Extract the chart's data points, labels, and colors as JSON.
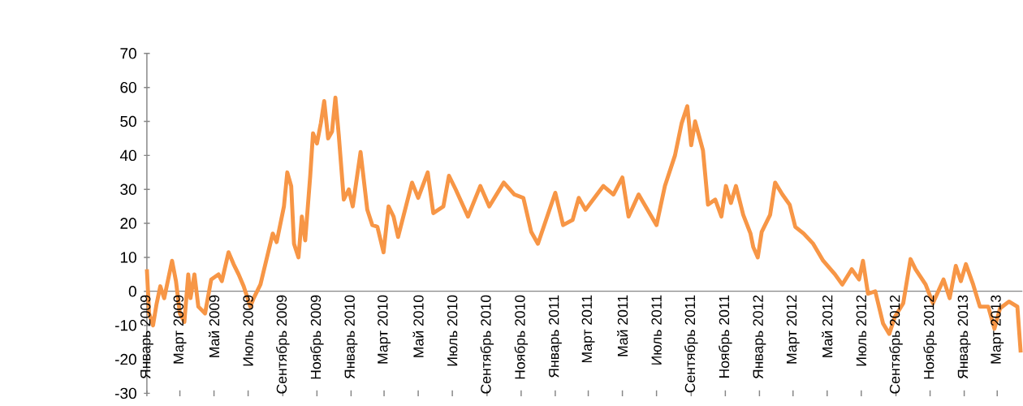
{
  "chart_data": {
    "type": "line",
    "color": "#f79646",
    "x": [
      "2009-01-01",
      "2009-01-05",
      "2009-01-12",
      "2009-01-18",
      "2009-01-25",
      "2009-02-01",
      "2009-02-08",
      "2009-02-15",
      "2009-02-22",
      "2009-03-01",
      "2009-03-09",
      "2009-03-16",
      "2009-03-20",
      "2009-03-27",
      "2009-04-03",
      "2009-04-15",
      "2009-04-26",
      "2009-05-09",
      "2009-05-15",
      "2009-05-27",
      "2009-06-05",
      "2009-06-14",
      "2009-06-23",
      "2009-07-05",
      "2009-07-11",
      "2009-07-23",
      "2009-08-03",
      "2009-08-14",
      "2009-08-21",
      "2009-09-03",
      "2009-09-09",
      "2009-09-16",
      "2009-09-21",
      "2009-09-29",
      "2009-10-05",
      "2009-10-11",
      "2009-10-20",
      "2009-10-25",
      "2009-11-01",
      "2009-11-08",
      "2009-11-14",
      "2009-11-21",
      "2009-11-28",
      "2009-12-04",
      "2009-12-10",
      "2009-12-15",
      "2009-12-19",
      "2009-12-28",
      "2010-01-04",
      "2010-01-18",
      "2010-01-30",
      "2010-02-08",
      "2010-02-17",
      "2010-02-28",
      "2010-03-09",
      "2010-03-18",
      "2010-03-26",
      "2010-04-20",
      "2010-05-01",
      "2010-05-18",
      "2010-05-28",
      "2010-06-15",
      "2010-06-25",
      "2010-07-07",
      "2010-07-29",
      "2010-08-20",
      "2010-09-05",
      "2010-10-01",
      "2010-10-20",
      "2010-11-05",
      "2010-11-19",
      "2010-12-01",
      "2011-01-01",
      "2011-01-15",
      "2011-02-01",
      "2011-02-12",
      "2011-02-24",
      "2011-03-28",
      "2011-04-15",
      "2011-05-01",
      "2011-05-12",
      "2011-05-30",
      "2011-07-01",
      "2011-07-16",
      "2011-08-03",
      "2011-08-15",
      "2011-08-25",
      "2011-09-01",
      "2011-09-08",
      "2011-09-22",
      "2011-10-01",
      "2011-10-14",
      "2011-10-25",
      "2011-11-02",
      "2011-11-11",
      "2011-11-20",
      "2011-12-03",
      "2011-12-16",
      "2011-12-21",
      "2011-12-29",
      "2012-01-05",
      "2012-01-20",
      "2012-01-29",
      "2012-02-11",
      "2012-02-24",
      "2012-03-05",
      "2012-03-20",
      "2012-04-06",
      "2012-04-24",
      "2012-05-15",
      "2012-05-28",
      "2012-06-14",
      "2012-06-27",
      "2012-07-04",
      "2012-07-13",
      "2012-07-26",
      "2012-08-09",
      "2012-08-20",
      "2012-08-30",
      "2012-09-14",
      "2012-09-27",
      "2012-10-06",
      "2012-10-24",
      "2012-11-06",
      "2012-11-25",
      "2012-12-06",
      "2012-12-17",
      "2012-12-26",
      "2013-01-04",
      "2013-01-17",
      "2013-01-29",
      "2013-02-13",
      "2013-02-24",
      "2013-03-06",
      "2013-03-22",
      "2013-04-06",
      "2013-04-12"
    ],
    "values": [
      6.5,
      -6.5,
      -10,
      -4,
      1.5,
      -2,
      3.5,
      9,
      3,
      -6.5,
      -9,
      5,
      -2,
      5,
      -4.5,
      -6.5,
      3.5,
      5,
      3,
      11.5,
      8,
      5,
      1.5,
      -4.5,
      -2,
      2,
      9.5,
      17,
      14.5,
      25,
      35,
      31,
      14,
      10,
      22,
      15,
      34,
      46.5,
      43.5,
      49.5,
      56,
      45,
      47,
      57,
      46,
      35.5,
      27,
      30,
      25,
      41,
      24,
      19.5,
      19,
      11.5,
      25,
      22,
      16,
      32,
      27.5,
      35,
      23,
      25,
      34,
      30,
      22,
      31,
      25,
      32,
      28.5,
      27.5,
      17.5,
      14,
      29,
      19.5,
      21,
      27.5,
      24,
      31,
      28.5,
      33.5,
      22,
      28.5,
      19.5,
      31,
      40,
      49.5,
      54.5,
      43,
      50,
      41.5,
      25.5,
      27,
      22,
      31,
      26,
      31,
      22.5,
      17,
      13,
      10,
      17.5,
      22.5,
      32,
      28.5,
      25.5,
      19,
      17,
      14,
      9,
      5,
      2,
      6.5,
      3.5,
      9,
      -0.7,
      0,
      -9.5,
      -12.5,
      -7.5,
      -3.5,
      9.5,
      6.5,
      2,
      -3.5,
      3.5,
      -2,
      7.5,
      3,
      8,
      2,
      -4.5,
      -4.5,
      -11,
      -5,
      -3,
      -4.5,
      -18
    ],
    "xlim": [
      "2009-01-01",
      "2013-04-15"
    ],
    "ylim": [
      -30,
      70
    ],
    "yticks": [
      -30,
      -20,
      -10,
      0,
      10,
      20,
      30,
      40,
      50,
      60,
      70
    ],
    "xticks": [
      {
        "value": "2009-01-01",
        "label": "Январь 2009"
      },
      {
        "value": "2009-03-01",
        "label": "Март 2009"
      },
      {
        "value": "2009-05-01",
        "label": "Май 2009"
      },
      {
        "value": "2009-07-01",
        "label": "Июль 2009"
      },
      {
        "value": "2009-09-01",
        "label": "Сентябрь 2009"
      },
      {
        "value": "2009-11-01",
        "label": "Ноябрь 2009"
      },
      {
        "value": "2010-01-01",
        "label": "Январь 2010"
      },
      {
        "value": "2010-03-01",
        "label": "Март 2010"
      },
      {
        "value": "2010-05-01",
        "label": "Май 2010"
      },
      {
        "value": "2010-07-01",
        "label": "Июль 2010"
      },
      {
        "value": "2010-09-01",
        "label": "Сентябрь 2010"
      },
      {
        "value": "2010-11-01",
        "label": "Ноябрь 2010"
      },
      {
        "value": "2011-01-01",
        "label": "Январь 2011"
      },
      {
        "value": "2011-03-01",
        "label": "Март 2011"
      },
      {
        "value": "2011-05-01",
        "label": "Май 2011"
      },
      {
        "value": "2011-07-01",
        "label": "Июль 2011"
      },
      {
        "value": "2011-09-01",
        "label": "Сентябрь 2011"
      },
      {
        "value": "2011-11-01",
        "label": "Ноябрь 2011"
      },
      {
        "value": "2012-01-01",
        "label": "Январь 2012"
      },
      {
        "value": "2012-03-01",
        "label": "Март 2012"
      },
      {
        "value": "2012-05-01",
        "label": "Май 2012"
      },
      {
        "value": "2012-07-01",
        "label": "Июль 2012"
      },
      {
        "value": "2012-09-01",
        "label": "Сентябрь 2012"
      },
      {
        "value": "2012-11-01",
        "label": "Ноябрь 2012"
      },
      {
        "value": "2013-01-01",
        "label": "Январь 2013"
      },
      {
        "value": "2013-03-01",
        "label": "Март 2013"
      }
    ]
  }
}
